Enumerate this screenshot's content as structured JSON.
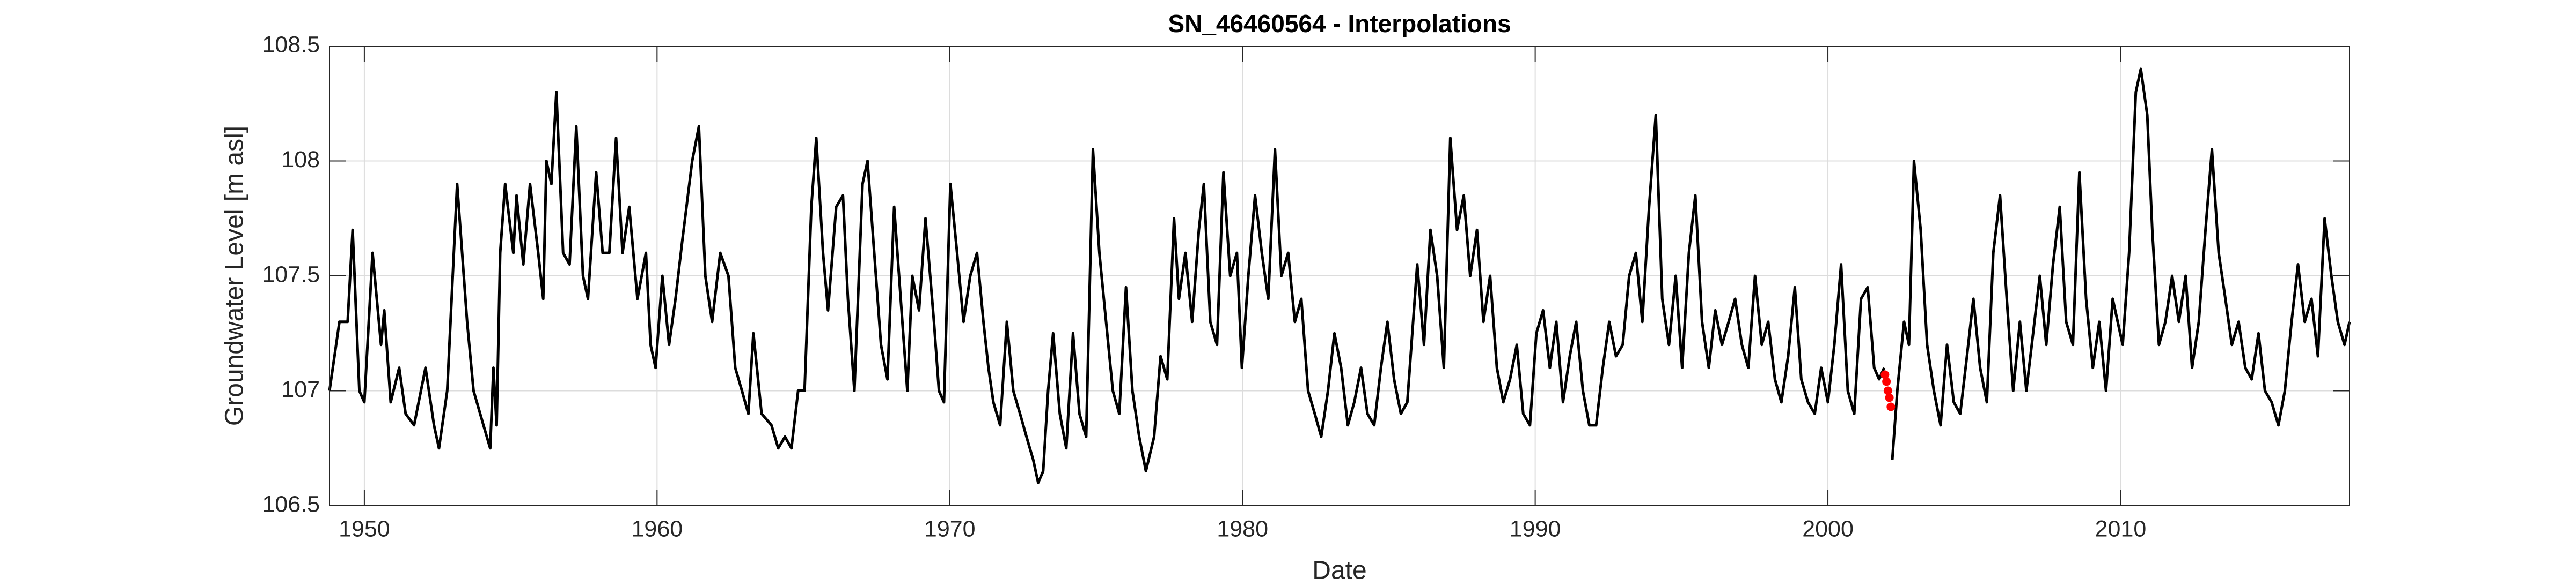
{
  "chart_data": {
    "type": "line",
    "title": "SN_46460564 - Interpolations",
    "xlabel": "Date",
    "ylabel": "Groundwater Level [m asl]",
    "xlim": [
      1948.81,
      2017.82
    ],
    "ylim": [
      106.5,
      108.5
    ],
    "xticks": [
      1950,
      1960,
      1970,
      1980,
      1990,
      2000,
      2010
    ],
    "yticks": [
      106.5,
      107,
      107.5,
      108,
      108.5
    ],
    "grid": true,
    "series": [
      {
        "color": "#000000",
        "style": "line",
        "x": [
          1948.81,
          1949.15,
          1949.43,
          1949.6,
          1949.83,
          1950.0,
          1950.28,
          1950.57,
          1950.68,
          1950.9,
          1951.19,
          1951.41,
          1951.7,
          1952.09,
          1952.38,
          1952.55,
          1952.83,
          1953.17,
          1953.51,
          1953.73,
          1954.07,
          1954.3,
          1954.41,
          1954.52,
          1954.64,
          1954.81,
          1955.09,
          1955.2,
          1955.43,
          1955.66,
          1955.94,
          1956.11,
          1956.22,
          1956.39,
          1956.56,
          1956.79,
          1957.01,
          1957.24,
          1957.47,
          1957.64,
          1957.92,
          1958.14,
          1958.37,
          1958.6,
          1958.82,
          1959.05,
          1959.33,
          1959.62,
          1959.78,
          1959.95,
          1960.18,
          1960.41,
          1960.63,
          1960.86,
          1961.2,
          1961.43,
          1961.65,
          1961.88,
          1962.16,
          1962.44,
          1962.67,
          1962.9,
          1963.12,
          1963.29,
          1963.57,
          1963.91,
          1964.14,
          1964.37,
          1964.59,
          1964.82,
          1965.04,
          1965.27,
          1965.44,
          1965.67,
          1965.84,
          1966.12,
          1966.35,
          1966.52,
          1966.74,
          1967.02,
          1967.19,
          1967.42,
          1967.65,
          1967.87,
          1968.1,
          1968.38,
          1968.55,
          1968.72,
          1968.95,
          1969.17,
          1969.46,
          1969.63,
          1969.8,
          1970.02,
          1970.25,
          1970.47,
          1970.7,
          1970.93,
          1971.15,
          1971.32,
          1971.49,
          1971.72,
          1971.95,
          1972.17,
          1972.4,
          1972.62,
          1972.85,
          1973.02,
          1973.19,
          1973.36,
          1973.53,
          1973.76,
          1973.98,
          1974.21,
          1974.43,
          1974.66,
          1974.89,
          1975.11,
          1975.34,
          1975.57,
          1975.79,
          1976.02,
          1976.24,
          1976.47,
          1976.7,
          1976.98,
          1977.2,
          1977.43,
          1977.66,
          1977.83,
          1978.05,
          1978.28,
          1978.51,
          1978.68,
          1978.9,
          1979.13,
          1979.35,
          1979.58,
          1979.81,
          1979.98,
          1980.2,
          1980.43,
          1980.66,
          1980.88,
          1981.11,
          1981.33,
          1981.56,
          1981.79,
          1982.01,
          1982.24,
          1982.47,
          1982.69,
          1982.92,
          1983.14,
          1983.37,
          1983.6,
          1983.82,
          1984.05,
          1984.27,
          1984.5,
          1984.73,
          1984.95,
          1985.18,
          1985.41,
          1985.63,
          1985.97,
          1986.2,
          1986.42,
          1986.65,
          1986.88,
          1987.1,
          1987.33,
          1987.56,
          1987.78,
          1988.01,
          1988.23,
          1988.46,
          1988.69,
          1988.91,
          1989.14,
          1989.37,
          1989.59,
          1989.82,
          1990.04,
          1990.27,
          1990.5,
          1990.72,
          1990.95,
          1991.18,
          1991.4,
          1991.63,
          1991.85,
          1992.08,
          1992.31,
          1992.53,
          1992.76,
          1992.99,
          1993.21,
          1993.44,
          1993.66,
          1993.89,
          1994.12,
          1994.34,
          1994.57,
          1994.8,
          1995.02,
          1995.25,
          1995.47,
          1995.7,
          1995.93,
          1996.15,
          1996.38,
          1996.61,
          1996.83,
          1997.06,
          1997.28,
          1997.51,
          1997.74,
          1997.96,
          1998.19,
          1998.41,
          1998.64,
          1998.87,
          1999.09,
          1999.32,
          1999.55,
          1999.77,
          2000.0,
          2000.22,
          2000.45,
          2000.68,
          2000.9,
          2001.13,
          2001.36,
          2001.58,
          2001.75,
          2001.92,
          2002.05,
          2002.2,
          2002.37,
          2002.6,
          2002.77,
          2002.94,
          2003.17,
          2003.39,
          2003.62,
          2003.85,
          2004.07,
          2004.3,
          2004.52,
          2004.75,
          2004.97,
          2005.2,
          2005.43,
          2005.65,
          2005.88,
          2006.11,
          2006.33,
          2006.56,
          2006.78,
          2007.01,
          2007.24,
          2007.46,
          2007.69,
          2007.92,
          2008.14,
          2008.37,
          2008.59,
          2008.82,
          2009.05,
          2009.27,
          2009.5,
          2009.73,
          2010.07,
          2010.29,
          2010.52,
          2010.69,
          2010.91,
          2011.08,
          2011.31,
          2011.53,
          2011.76,
          2011.99,
          2012.22,
          2012.44,
          2012.67,
          2012.9,
          2013.12,
          2013.35,
          2013.58,
          2013.8,
          2014.03,
          2014.26,
          2014.48,
          2014.71,
          2014.93,
          2015.16,
          2015.39,
          2015.61,
          2015.84,
          2016.06,
          2016.29,
          2016.52,
          2016.74,
          2016.97,
          2017.2,
          2017.42,
          2017.65,
          2017.82
        ],
        "values": [
          107.0,
          107.3,
          107.3,
          107.7,
          107.0,
          106.95,
          107.6,
          107.2,
          107.35,
          106.95,
          107.1,
          106.9,
          106.85,
          107.1,
          106.85,
          106.75,
          107.0,
          107.9,
          107.3,
          107.0,
          106.85,
          106.75,
          107.1,
          106.85,
          107.6,
          107.9,
          107.6,
          107.85,
          107.55,
          107.9,
          107.6,
          107.4,
          108.0,
          107.9,
          108.3,
          107.6,
          107.55,
          108.15,
          107.5,
          107.4,
          107.95,
          107.6,
          107.6,
          108.1,
          107.6,
          107.8,
          107.4,
          107.6,
          107.2,
          107.1,
          107.5,
          107.2,
          107.4,
          107.65,
          108.0,
          108.15,
          107.5,
          107.3,
          107.6,
          107.5,
          107.1,
          107.0,
          106.9,
          107.25,
          106.9,
          106.85,
          106.75,
          106.8,
          106.75,
          107.0,
          107.0,
          107.8,
          108.1,
          107.6,
          107.35,
          107.8,
          107.85,
          107.4,
          107.0,
          107.9,
          108.0,
          107.6,
          107.2,
          107.05,
          107.8,
          107.3,
          107.0,
          107.5,
          107.35,
          107.75,
          107.3,
          107.0,
          106.95,
          107.9,
          107.6,
          107.3,
          107.5,
          107.6,
          107.3,
          107.1,
          106.95,
          106.85,
          107.3,
          107.0,
          106.9,
          106.8,
          106.7,
          106.6,
          106.65,
          107.0,
          107.25,
          106.9,
          106.75,
          107.25,
          106.9,
          106.8,
          108.05,
          107.6,
          107.3,
          107.0,
          106.9,
          107.45,
          107.0,
          106.8,
          106.65,
          106.8,
          107.15,
          107.05,
          107.75,
          107.4,
          107.6,
          107.3,
          107.7,
          107.9,
          107.3,
          107.2,
          107.95,
          107.5,
          107.6,
          107.1,
          107.5,
          107.85,
          107.6,
          107.4,
          108.05,
          107.5,
          107.6,
          107.3,
          107.4,
          107.0,
          106.9,
          106.8,
          107.0,
          107.25,
          107.1,
          106.85,
          106.95,
          107.1,
          106.9,
          106.85,
          107.1,
          107.3,
          107.05,
          106.9,
          106.95,
          107.55,
          107.2,
          107.7,
          107.5,
          107.1,
          108.1,
          107.7,
          107.85,
          107.5,
          107.7,
          107.3,
          107.5,
          107.1,
          106.95,
          107.05,
          107.2,
          106.9,
          106.85,
          107.25,
          107.35,
          107.1,
          107.3,
          106.95,
          107.15,
          107.3,
          107.0,
          106.85,
          106.85,
          107.1,
          107.3,
          107.15,
          107.2,
          107.5,
          107.6,
          107.3,
          107.8,
          108.2,
          107.4,
          107.2,
          107.5,
          107.1,
          107.6,
          107.85,
          107.3,
          107.1,
          107.35,
          107.2,
          107.3,
          107.4,
          107.2,
          107.1,
          107.5,
          107.2,
          107.3,
          107.05,
          106.95,
          107.15,
          107.45,
          107.05,
          106.95,
          106.9,
          107.1,
          106.95,
          107.2,
          107.55,
          107.0,
          106.9,
          107.4,
          107.45,
          107.1,
          107.05,
          107.1,
          null,
          106.7,
          107.0,
          107.3,
          107.2,
          108.0,
          107.7,
          107.2,
          107.0,
          106.85,
          107.2,
          106.95,
          106.9,
          107.15,
          107.4,
          107.1,
          106.95,
          107.6,
          107.85,
          107.4,
          107.0,
          107.3,
          107.0,
          107.25,
          107.5,
          107.2,
          107.55,
          107.8,
          107.3,
          107.2,
          107.95,
          107.4,
          107.1,
          107.3,
          107.0,
          107.4,
          107.2,
          107.6,
          108.3,
          108.4,
          108.2,
          107.7,
          107.2,
          107.3,
          107.5,
          107.3,
          107.5,
          107.1,
          107.3,
          107.7,
          108.05,
          107.6,
          107.4,
          107.2,
          107.3,
          107.1,
          107.05,
          107.25,
          107.0,
          106.95,
          106.85,
          107.0,
          107.3,
          107.55,
          107.3,
          107.4,
          107.15,
          107.75,
          107.5,
          107.3,
          107.2,
          107.3
        ]
      },
      {
        "color": "#ff0000",
        "style": "markers",
        "x": [
          2001.95,
          2002.0,
          2002.05,
          2002.1,
          2002.15
        ],
        "values": [
          107.07,
          107.04,
          107.0,
          106.97,
          106.93
        ]
      }
    ]
  }
}
